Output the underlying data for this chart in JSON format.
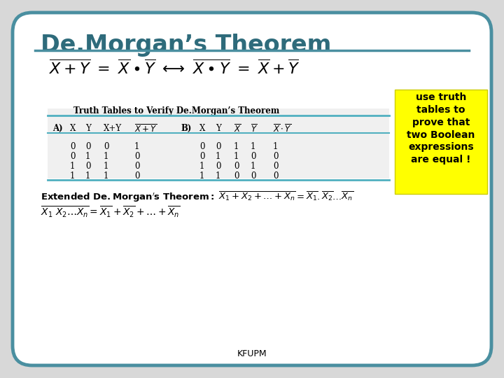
{
  "title": "De.Morgan’s Theorem",
  "title_color": "#2E6B7B",
  "bg_color": "#FFFFFF",
  "border_color": "#4A8FA0",
  "table_title": "Truth Tables to Verify De.Morgan’s Theorem",
  "col_A_headers": [
    "A)",
    "X",
    "Y",
    "X+Y",
    "X+Y_bar"
  ],
  "col_B_headers": [
    "B)",
    "X",
    "Y",
    "X_bar",
    "Y_bar",
    "XY_bar"
  ],
  "table_data_A": [
    [
      "0",
      "0",
      "0",
      "1"
    ],
    [
      "0",
      "1",
      "1",
      "0"
    ],
    [
      "1",
      "0",
      "1",
      "0"
    ],
    [
      "1",
      "1",
      "1",
      "0"
    ]
  ],
  "table_data_B": [
    [
      "0",
      "0",
      "1",
      "1",
      "1"
    ],
    [
      "0",
      "1",
      "1",
      "0",
      "0"
    ],
    [
      "1",
      "0",
      "0",
      "1",
      "0"
    ],
    [
      "1",
      "1",
      "0",
      "0",
      "0"
    ]
  ],
  "note_text": "use truth\ntables to\nprove that\ntwo Boolean\nexpressions\nare equal !",
  "note_bg": "#FFFF00",
  "footer": "KFUPM",
  "outer_bg": "#D8D8D8"
}
